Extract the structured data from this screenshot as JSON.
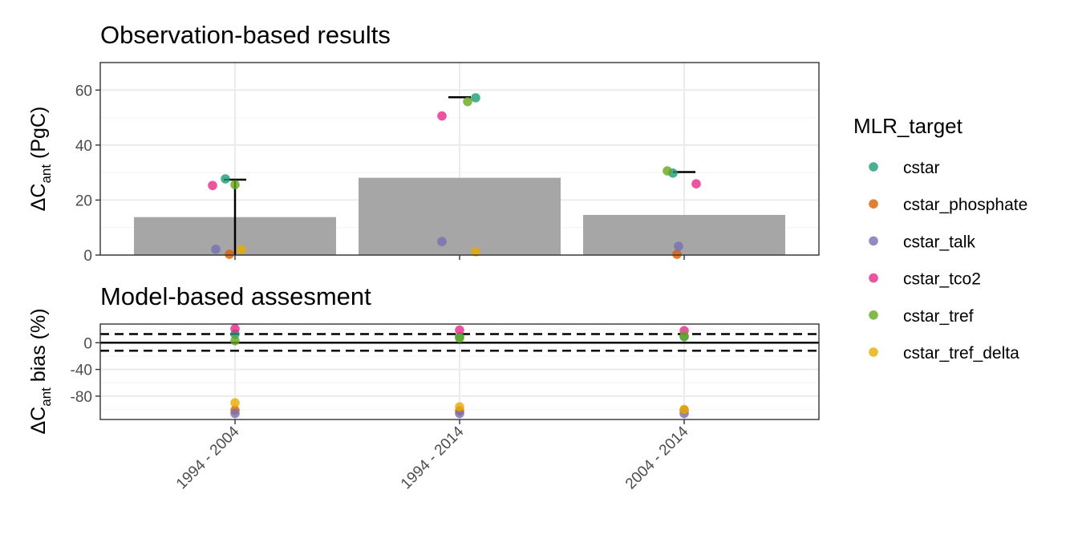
{
  "chart_data": [
    {
      "type": "bar",
      "title": "Observation-based results",
      "ylabel_main": "ΔC",
      "ylabel_sub": "ant",
      "ylabel_rest": " (PgC)",
      "categories": [
        "1994 - 2004",
        "1994 - 2014",
        "2004 - 2014"
      ],
      "bar_values": [
        13.8,
        28.1,
        14.6
      ],
      "ylim": [
        0,
        70
      ],
      "yticks": [
        0,
        20,
        40,
        60
      ],
      "errorbars": [
        {
          "category": "1994 - 2004",
          "low": 0,
          "high": 27.4
        },
        {
          "category": "1994 - 2014",
          "low": 57.4,
          "high": 57.4
        },
        {
          "category": "2004 - 2014",
          "low": 30.2,
          "high": 30.2
        }
      ],
      "series": [
        {
          "name": "cstar",
          "values": [
            27.7,
            57.2,
            29.8
          ]
        },
        {
          "name": "cstar_phosphate",
          "values": [
            0.2,
            null,
            0.2
          ]
        },
        {
          "name": "cstar_talk",
          "values": [
            2.1,
            4.9,
            3.2
          ]
        },
        {
          "name": "cstar_tco2",
          "values": [
            25.3,
            50.6,
            25.9
          ]
        },
        {
          "name": "cstar_tref",
          "values": [
            25.6,
            55.8,
            30.6
          ]
        },
        {
          "name": "cstar_tref_delta",
          "values": [
            2.0,
            1.2,
            null
          ]
        }
      ],
      "grid": true
    },
    {
      "type": "scatter",
      "title": "Model-based assesment",
      "ylabel_main": "ΔC",
      "ylabel_sub": "ant",
      "ylabel_rest": " bias (%)",
      "categories": [
        "1994 - 2004",
        "1994 - 2014",
        "2004 - 2014"
      ],
      "ylim": [
        -115,
        28
      ],
      "yticks": [
        0,
        -40,
        -80
      ],
      "ytick_labels": [
        "0",
        "-40",
        "-80"
      ],
      "hlines": {
        "solid": 0,
        "dashed": [
          13,
          -12
        ]
      },
      "series": [
        {
          "name": "cstar",
          "values": [
            13,
            9,
            9
          ]
        },
        {
          "name": "cstar_phosphate",
          "values": [
            -101,
            -102,
            -101
          ]
        },
        {
          "name": "cstar_talk",
          "values": [
            -106,
            -106,
            -106
          ]
        },
        {
          "name": "cstar_tco2",
          "values": [
            21,
            19,
            18
          ]
        },
        {
          "name": "cstar_tref",
          "values": [
            3,
            7,
            10
          ]
        },
        {
          "name": "cstar_tref_delta",
          "values": [
            -90,
            -96,
            -100
          ]
        }
      ],
      "grid": true
    }
  ],
  "legend": {
    "title": "MLR_target",
    "placement": "right",
    "items": [
      {
        "label": "cstar",
        "color": "#1B9E77"
      },
      {
        "label": "cstar_phosphate",
        "color": "#D95F02"
      },
      {
        "label": "cstar_talk",
        "color": "#7570B3"
      },
      {
        "label": "cstar_tco2",
        "color": "#E7298A"
      },
      {
        "label": "cstar_tref",
        "color": "#66A61E"
      },
      {
        "label": "cstar_tref_delta",
        "color": "#E6AB02"
      }
    ]
  },
  "colors": {
    "bar_fill": "#A6A6A6",
    "grid_major": "#EBEBEB",
    "grid_minor": "#F5F5F5"
  }
}
